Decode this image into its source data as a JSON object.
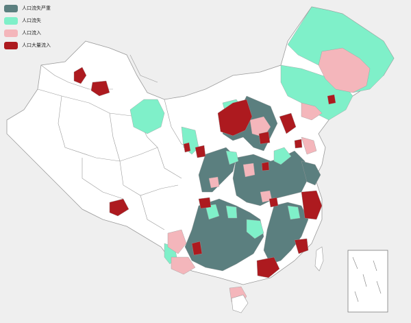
{
  "legend": {
    "items": [
      {
        "label": "人口流失严重",
        "color": "#5b7f7f"
      },
      {
        "label": "人口流失",
        "color": "#7ff0c9"
      },
      {
        "label": "人口流入",
        "color": "#f4b6bb"
      },
      {
        "label": "人口大量流入",
        "color": "#ad1a1f"
      }
    ]
  },
  "colors": {
    "background": "#efefef",
    "border": "#9a9a9a",
    "unclassified": "#ffffff"
  }
}
